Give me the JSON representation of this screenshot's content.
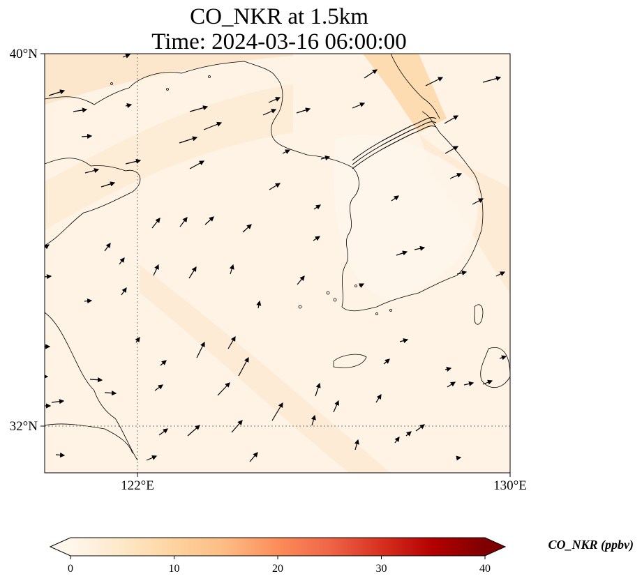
{
  "title": {
    "line1": "CO_NKR at 1.5km",
    "line2": "Time: 2024-03-16 06:00:00"
  },
  "axes": {
    "lat_ticks": [
      "40°N",
      "32°N"
    ],
    "lon_ticks": [
      "122°E",
      "130°E"
    ],
    "lon_range": [
      120,
      130
    ],
    "lat_range": [
      31,
      40
    ],
    "gridlines": "dotted at 122°E and 32°N"
  },
  "colorbar": {
    "label": "CO_NKR (ppbv)",
    "ticks": [
      "0",
      "10",
      "20",
      "30",
      "40"
    ],
    "range": [
      0,
      40
    ],
    "extend": "both",
    "colormap": "OrRd",
    "colors": [
      "#fff7ec",
      "#fee8c8",
      "#fdd49e",
      "#fdbb84",
      "#fc8d59",
      "#ef6548",
      "#d7301f",
      "#b30000",
      "#7f0000"
    ]
  },
  "field": {
    "background_color": "#fef3e4",
    "max_region_color": "#fdd9ac",
    "typical_value_ppbv": 2,
    "max_value_ppbv": 6
  },
  "wind_vectors": "black arrows, predominantly westerly to southwesterly",
  "map": {
    "region": "Yellow Sea, Korean Peninsula, eastern China",
    "coastline_color": "#000000"
  }
}
